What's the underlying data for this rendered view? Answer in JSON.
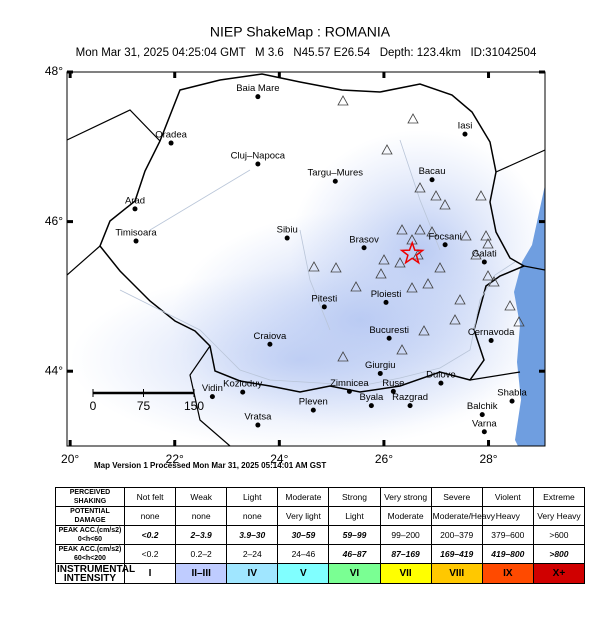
{
  "title": "NIEP ShakeMap : ROMANIA",
  "subtitle": "Mon Mar 31, 2025 04:25:04 GMT   M 3.6   N45.57 E26.54   Depth: 123.4km   ID:31042504",
  "map": {
    "xlim": [
      19.94,
      29.08
    ],
    "ylim": [
      43,
      48
    ],
    "xticks": [
      {
        "value": 20,
        "label": "20°"
      },
      {
        "value": 22,
        "label": "22°"
      },
      {
        "value": 24,
        "label": "24°"
      },
      {
        "value": 26,
        "label": "26°"
      },
      {
        "value": 28,
        "label": "28°"
      }
    ],
    "yticks": [
      {
        "value": 44,
        "label": "44°"
      },
      {
        "value": 46,
        "label": "46°"
      },
      {
        "value": 48,
        "label": "48°"
      }
    ],
    "epicenter": {
      "lon": 26.54,
      "lat": 45.57
    },
    "scale_bar": [
      0,
      75,
      150
    ],
    "cities": [
      {
        "name": "Baia Mare",
        "lon": 23.59,
        "lat": 47.67
      },
      {
        "name": "Oradea",
        "lon": 21.93,
        "lat": 47.05
      },
      {
        "name": "Cluj–Napoca",
        "lon": 23.59,
        "lat": 46.77
      },
      {
        "name": "Targu–Mures",
        "lon": 25.07,
        "lat": 46.54
      },
      {
        "name": "Iasi",
        "lon": 27.55,
        "lat": 47.17
      },
      {
        "name": "Bacau",
        "lon": 26.92,
        "lat": 46.56
      },
      {
        "name": "Arad",
        "lon": 21.24,
        "lat": 46.17
      },
      {
        "name": "Timisoara",
        "lon": 21.26,
        "lat": 45.74
      },
      {
        "name": "Sibiu",
        "lon": 24.15,
        "lat": 45.78
      },
      {
        "name": "Brasov",
        "lon": 25.62,
        "lat": 45.65
      },
      {
        "name": "Focsani",
        "lon": 27.17,
        "lat": 45.69
      },
      {
        "name": "Galati",
        "lon": 27.92,
        "lat": 45.46
      },
      {
        "name": "Ploiesti",
        "lon": 26.04,
        "lat": 44.92
      },
      {
        "name": "Pitesti",
        "lon": 24.86,
        "lat": 44.86
      },
      {
        "name": "Bucuresti",
        "lon": 26.1,
        "lat": 44.44
      },
      {
        "name": "Craiova",
        "lon": 23.82,
        "lat": 44.36
      },
      {
        "name": "Cernavoda",
        "lon": 28.05,
        "lat": 44.41
      },
      {
        "name": "Giurgiu",
        "lon": 25.93,
        "lat": 43.97
      },
      {
        "name": "Zimnicea",
        "lon": 25.34,
        "lat": 43.73
      },
      {
        "name": "Ruse",
        "lon": 26.18,
        "lat": 43.73
      },
      {
        "name": "Dulovo",
        "lon": 27.09,
        "lat": 43.84
      },
      {
        "name": "Kozloduy",
        "lon": 23.3,
        "lat": 43.72
      },
      {
        "name": "Vidin",
        "lon": 22.72,
        "lat": 43.66
      },
      {
        "name": "Pleven",
        "lon": 24.65,
        "lat": 43.48
      },
      {
        "name": "Byala",
        "lon": 25.76,
        "lat": 43.54
      },
      {
        "name": "Razgrad",
        "lon": 26.5,
        "lat": 43.54
      },
      {
        "name": "Shabla",
        "lon": 28.45,
        "lat": 43.6
      },
      {
        "name": "Balchik",
        "lon": 27.88,
        "lat": 43.42
      },
      {
        "name": "Varna",
        "lon": 27.92,
        "lat": 43.19
      },
      {
        "name": "Vratsa",
        "lon": 23.59,
        "lat": 43.28
      }
    ]
  },
  "footer": "Map Version 1 Processed Mon Mar 31, 2025 05:14:01 AM GST",
  "legend": {
    "rows": [
      {
        "header": "PERCEIVED SHAKING",
        "cells": [
          "Not felt",
          "Weak",
          "Light",
          "Moderate",
          "Strong",
          "Very strong",
          "Severe",
          "Violent",
          "Extreme"
        ]
      },
      {
        "header": "POTENTIAL DAMAGE",
        "cells": [
          "none",
          "none",
          "none",
          "Very light",
          "Light",
          "Moderate",
          "Moderate/Heavy",
          "Heavy",
          "Very Heavy"
        ]
      },
      {
        "header": "PEAK ACC.(cm/s2) 0<h<60",
        "cells": [
          "<0.2",
          "2–3.9",
          "3.9–30",
          "30–59",
          "59–99",
          "99–200",
          "200–379",
          "379–600",
          ">600"
        ]
      },
      {
        "header": "PEAK ACC.(cm/s2) 60<h<200",
        "cells": [
          "<0.2",
          "0.2–2",
          "2–24",
          "24–46",
          "46–87",
          "87–169",
          "169–419",
          "419–800",
          ">800"
        ]
      },
      {
        "header": "INSTRUMENTAL INTENSITY",
        "cells": [
          "I",
          "II–III",
          "IV",
          "V",
          "VI",
          "VII",
          "VIII",
          "IX",
          "X+"
        ]
      }
    ],
    "colors": [
      "#ffffff",
      "#bfccff",
      "#a0e6ff",
      "#80ffff",
      "#7aff93",
      "#ffff00",
      "#ffc800",
      "#ff4a00",
      "#d00000"
    ]
  }
}
